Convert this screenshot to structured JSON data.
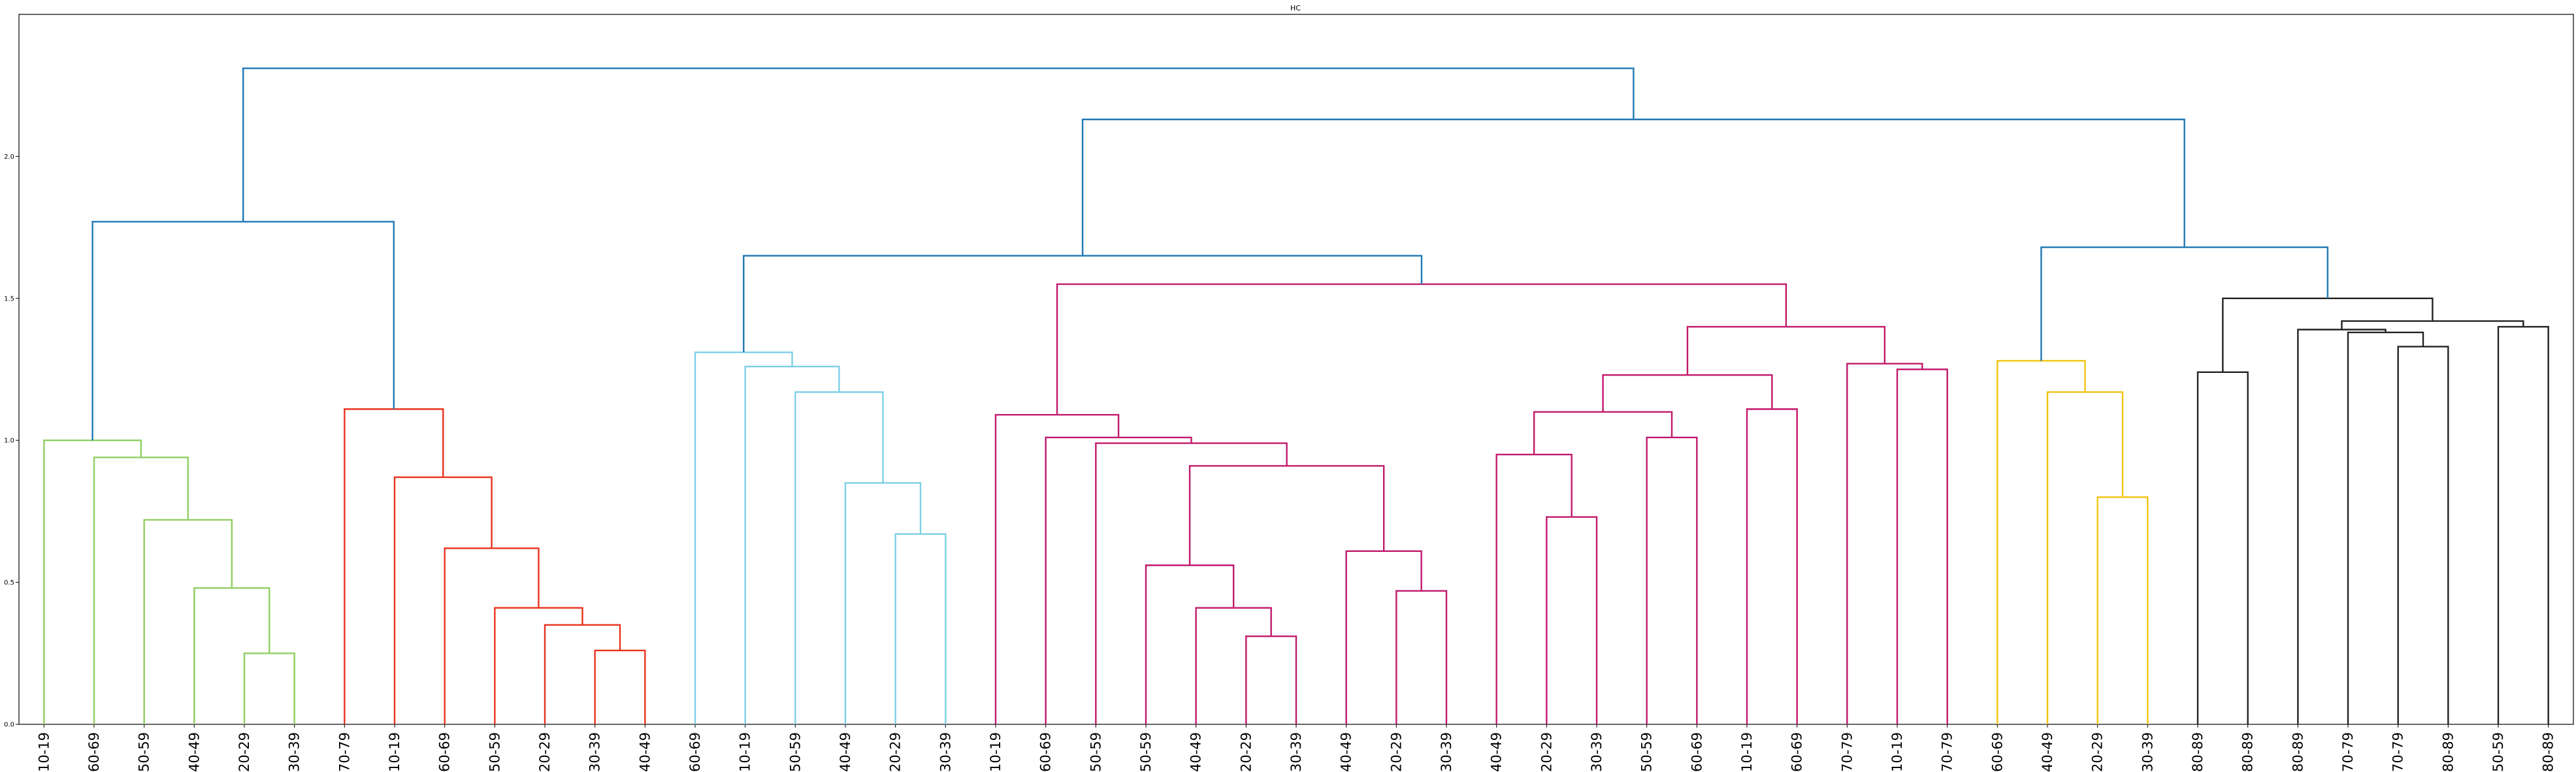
{
  "chart_data": {
    "type": "dendrogram",
    "title": "HC",
    "xlabel": "",
    "ylabel": "",
    "ylim": [
      0,
      2.5
    ],
    "yticks": [
      0.0,
      0.5,
      1.0,
      1.5,
      2.0
    ],
    "ytick_labels": [
      "0.0",
      "0.5",
      "1.0",
      "1.5",
      "2.0"
    ],
    "grid": false,
    "leaves": [
      "10-19",
      "60-69",
      "50-59",
      "40-49",
      "20-29",
      "30-39",
      "70-79",
      "10-19",
      "60-69",
      "50-59",
      "20-29",
      "30-39",
      "40-49",
      "60-69",
      "10-19",
      "50-59",
      "40-49",
      "20-29",
      "30-39",
      "10-19",
      "60-69",
      "50-59",
      "50-59",
      "40-49",
      "20-29",
      "30-39",
      "40-49",
      "20-29",
      "30-39",
      "40-49",
      "20-29",
      "30-39",
      "50-59",
      "60-69",
      "10-19",
      "60-69",
      "70-79",
      "10-19",
      "70-79",
      "60-69",
      "40-49",
      "20-29",
      "30-39",
      "80-89",
      "80-89",
      "80-89",
      "70-79",
      "70-79",
      "80-89",
      "50-59",
      "80-89"
    ],
    "colors": {
      "root": "#1f77b4",
      "green": "#8fce62",
      "red": "#e8321e",
      "lightblue": "#7ccfe6",
      "magenta": "#c2186b",
      "yellow": "#f2c40f",
      "black": "#222222"
    },
    "merges": [
      {
        "a": 4,
        "b": 5,
        "h": 0.25,
        "color": "green"
      },
      {
        "a": 3,
        "b": "m0",
        "h": 0.48,
        "color": "green"
      },
      {
        "a": 2,
        "b": "m1",
        "h": 0.72,
        "color": "green"
      },
      {
        "a": 1,
        "b": "m2",
        "h": 0.94,
        "color": "green"
      },
      {
        "a": 0,
        "b": "m3",
        "h": 1.0,
        "color": "green"
      },
      {
        "a": 11,
        "b": 12,
        "h": 0.26,
        "color": "red"
      },
      {
        "a": 10,
        "b": "m5",
        "h": 0.35,
        "color": "red"
      },
      {
        "a": 9,
        "b": "m6",
        "h": 0.41,
        "color": "red"
      },
      {
        "a": 8,
        "b": "m7",
        "h": 0.62,
        "color": "red"
      },
      {
        "a": 7,
        "b": "m8",
        "h": 0.87,
        "color": "red"
      },
      {
        "a": 6,
        "b": "m9",
        "h": 1.11,
        "color": "red"
      },
      {
        "a": "m4",
        "b": "m10",
        "h": 1.77,
        "color": "root"
      },
      {
        "a": 17,
        "b": 18,
        "h": 0.67,
        "color": "lightblue"
      },
      {
        "a": 16,
        "b": "m12",
        "h": 0.85,
        "color": "lightblue"
      },
      {
        "a": 15,
        "b": "m13",
        "h": 1.17,
        "color": "lightblue"
      },
      {
        "a": 14,
        "b": "m14",
        "h": 1.26,
        "color": "lightblue"
      },
      {
        "a": 13,
        "b": "m15",
        "h": 1.31,
        "color": "lightblue"
      },
      {
        "a": 24,
        "b": 25,
        "h": 0.31,
        "color": "magenta"
      },
      {
        "a": 23,
        "b": "m17",
        "h": 0.41,
        "color": "magenta"
      },
      {
        "a": 22,
        "b": "m18",
        "h": 0.56,
        "color": "magenta"
      },
      {
        "a": 27,
        "b": 28,
        "h": 0.47,
        "color": "magenta"
      },
      {
        "a": 26,
        "b": "m20",
        "h": 0.61,
        "color": "magenta"
      },
      {
        "a": "m19",
        "b": "m21",
        "h": 0.91,
        "color": "magenta"
      },
      {
        "a": 21,
        "b": "m22",
        "h": 0.99,
        "color": "magenta"
      },
      {
        "a": 20,
        "b": "m23",
        "h": 1.01,
        "color": "magenta"
      },
      {
        "a": 19,
        "b": "m24",
        "h": 1.09,
        "color": "magenta"
      },
      {
        "a": 30,
        "b": 31,
        "h": 0.73,
        "color": "magenta"
      },
      {
        "a": 29,
        "b": "m26",
        "h": 0.95,
        "color": "magenta"
      },
      {
        "a": 32,
        "b": 33,
        "h": 1.01,
        "color": "magenta"
      },
      {
        "a": "m27",
        "b": "m28",
        "h": 1.1,
        "color": "magenta"
      },
      {
        "a": 34,
        "b": 35,
        "h": 1.11,
        "color": "magenta"
      },
      {
        "a": "m29",
        "b": "m30",
        "h": 1.23,
        "color": "magenta"
      },
      {
        "a": 37,
        "b": 38,
        "h": 1.25,
        "color": "magenta"
      },
      {
        "a": 36,
        "b": "m32",
        "h": 1.27,
        "color": "magenta"
      },
      {
        "a": "m31",
        "b": "m33",
        "h": 1.4,
        "color": "magenta"
      },
      {
        "a": "m25",
        "b": "m34",
        "h": 1.55,
        "color": "magenta"
      },
      {
        "a": "m16",
        "b": "m35",
        "h": 1.65,
        "color": "root"
      },
      {
        "a": 41,
        "b": 42,
        "h": 0.8,
        "color": "yellow"
      },
      {
        "a": 40,
        "b": "m37",
        "h": 1.17,
        "color": "yellow"
      },
      {
        "a": 39,
        "b": "m38",
        "h": 1.28,
        "color": "yellow"
      },
      {
        "a": 43,
        "b": 44,
        "h": 1.24,
        "color": "black"
      },
      {
        "a": 47,
        "b": 48,
        "h": 1.33,
        "color": "black"
      },
      {
        "a": 46,
        "b": "m41",
        "h": 1.38,
        "color": "black"
      },
      {
        "a": 45,
        "b": "m42",
        "h": 1.39,
        "color": "black"
      },
      {
        "a": 49,
        "b": 50,
        "h": 1.4,
        "color": "black"
      },
      {
        "a": "m43",
        "b": "m44",
        "h": 1.42,
        "color": "black"
      },
      {
        "a": "m40",
        "b": "m45",
        "h": 1.5,
        "color": "black"
      },
      {
        "a": "m39",
        "b": "m46",
        "h": 1.68,
        "color": "root"
      },
      {
        "a": "m36",
        "b": "m47",
        "h": 2.13,
        "color": "root"
      },
      {
        "a": "m11",
        "b": "m48",
        "h": 2.31,
        "color": "root"
      }
    ]
  }
}
